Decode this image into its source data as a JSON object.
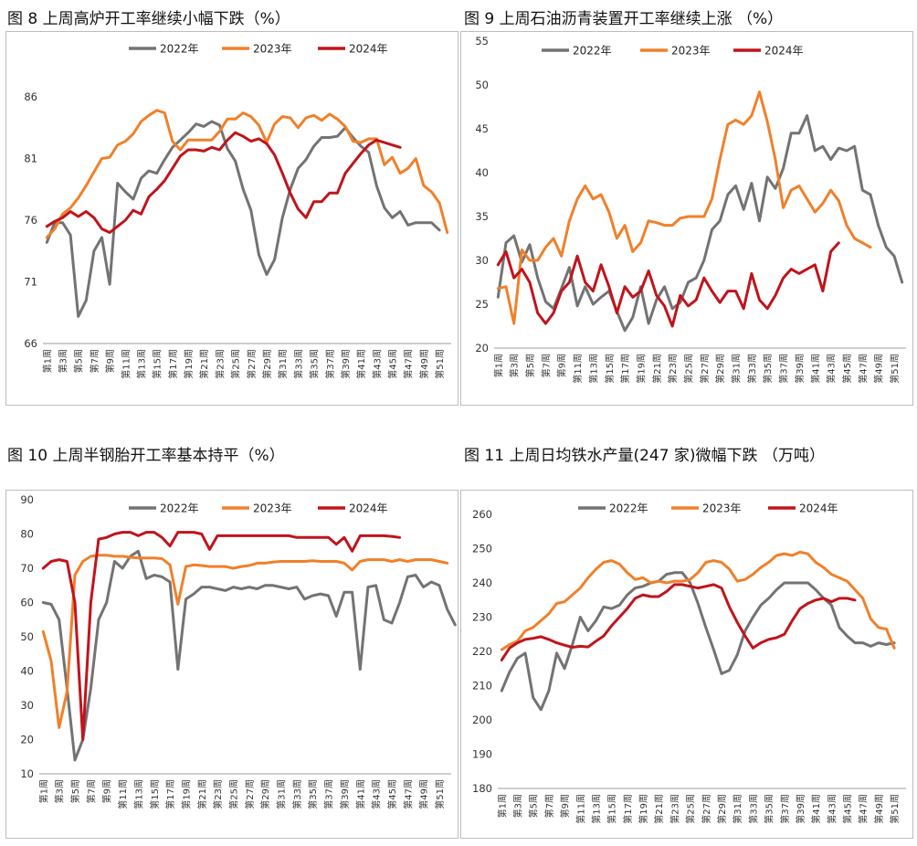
{
  "chart_data": [
    {
      "type": "line",
      "title": "图 8 上周高炉开工率继续小幅下跌（%）",
      "ylim": [
        66,
        88
      ],
      "yticks": [
        66,
        71,
        76,
        81,
        86
      ],
      "x_labels": [
        "第1周",
        "第3周",
        "第5周",
        "第7周",
        "第9周",
        "第11周",
        "第13周",
        "第15周",
        "第17周",
        "第19周",
        "第21周",
        "第23周",
        "第25周",
        "第27周",
        "第29周",
        "第31周",
        "第33周",
        "第35周",
        "第37周",
        "第39周",
        "第41周",
        "第43周",
        "第45周",
        "第47周",
        "第49周",
        "第51周"
      ],
      "series": [
        {
          "name": "2022年",
          "color": "#737373",
          "values": [
            74.2,
            75.8,
            75.8,
            74.8,
            68.2,
            69.5,
            73.5,
            74.6,
            70.8,
            79.0,
            78.3,
            77.7,
            79.4,
            80.0,
            79.8,
            80.9,
            81.9,
            82.5,
            83.1,
            83.8,
            83.6,
            84.0,
            83.7,
            81.8,
            80.8,
            78.5,
            76.8,
            73.2,
            71.6,
            72.8,
            76.2,
            78.5,
            80.2,
            80.9,
            82.0,
            82.7,
            82.7,
            82.8,
            83.5,
            82.7,
            82.0,
            81.5,
            78.8,
            77.0,
            76.2,
            76.7,
            75.6,
            75.8,
            75.8,
            75.8,
            75.2
          ]
        },
        {
          "name": "2023年",
          "color": "#f0802a",
          "values": [
            74.6,
            75.3,
            76.5,
            77.0,
            77.8,
            78.8,
            79.9,
            81.0,
            81.1,
            82.1,
            82.4,
            83.0,
            84.0,
            84.5,
            84.9,
            84.7,
            82.4,
            81.7,
            82.5,
            82.5,
            82.5,
            82.5,
            83.2,
            84.2,
            84.2,
            84.7,
            84.4,
            83.7,
            82.3,
            83.8,
            84.4,
            84.3,
            83.5,
            84.3,
            84.5,
            84.1,
            84.6,
            84.2,
            83.6,
            82.4,
            82.3,
            82.6,
            82.6,
            80.5,
            81.1,
            79.8,
            80.2,
            81.0,
            78.8,
            78.3,
            77.4,
            75.0
          ]
        },
        {
          "name": "2024年",
          "color": "#c0141c",
          "values": [
            75.5,
            75.9,
            76.2,
            76.7,
            76.3,
            76.7,
            76.2,
            75.3,
            75.0,
            75.5,
            76.0,
            76.8,
            76.5,
            77.9,
            78.5,
            79.2,
            80.2,
            81.2,
            81.7,
            81.7,
            81.6,
            81.9,
            81.7,
            82.5,
            83.1,
            82.8,
            82.4,
            82.6,
            82.2,
            81.3,
            79.8,
            78.2,
            76.9,
            76.2,
            77.5,
            77.5,
            78.2,
            78.2,
            79.8,
            80.6,
            81.4,
            82.1,
            82.5,
            82.3,
            82.1,
            81.9
          ]
        }
      ]
    },
    {
      "type": "line",
      "title": "图 9 上周石油沥青装置开工率继续上涨 （%）",
      "ylim": [
        20,
        55
      ],
      "yticks": [
        20,
        25,
        30,
        35,
        40,
        45,
        50,
        55
      ],
      "x_labels": [
        "第1周",
        "第3周",
        "第5周",
        "第7周",
        "第9周",
        "第11周",
        "第13周",
        "第15周",
        "第17周",
        "第19周",
        "第21周",
        "第23周",
        "第25周",
        "第27周",
        "第29周",
        "第31周",
        "第33周",
        "第35周",
        "第37周",
        "第39周",
        "第41周",
        "第43周",
        "第45周",
        "第47周",
        "第49周",
        "第51周"
      ],
      "series": [
        {
          "name": "2022年",
          "color": "#737373",
          "values": [
            25.8,
            32.0,
            32.8,
            29.8,
            31.8,
            28.0,
            25.3,
            24.5,
            26.8,
            29.2,
            24.8,
            27.0,
            25.0,
            25.8,
            26.5,
            24.2,
            22.0,
            23.5,
            27.0,
            22.8,
            25.5,
            27.0,
            24.5,
            25.2,
            27.5,
            28.0,
            30.0,
            33.5,
            34.5,
            37.5,
            38.5,
            35.8,
            38.8,
            34.5,
            39.5,
            38.2,
            40.5,
            44.5,
            44.5,
            46.5,
            42.5,
            43.0,
            41.5,
            42.8,
            42.5,
            43.0,
            38.0,
            37.5,
            34.0,
            31.5,
            30.5,
            27.5
          ]
        },
        {
          "name": "2023年",
          "color": "#f0802a",
          "values": [
            26.8,
            27.0,
            22.8,
            31.2,
            30.0,
            30.0,
            31.5,
            32.5,
            30.5,
            34.5,
            37.0,
            38.5,
            37.0,
            37.5,
            35.5,
            32.5,
            34.0,
            31.0,
            32.0,
            34.5,
            34.3,
            34.0,
            34.0,
            34.8,
            35.0,
            35.0,
            35.0,
            37.0,
            41.5,
            45.5,
            46.0,
            45.5,
            46.5,
            49.2,
            45.8,
            41.5,
            36.0,
            38.0,
            38.5,
            37.0,
            35.5,
            36.5,
            38.0,
            36.8,
            34.0,
            32.5,
            32.0,
            31.5
          ]
        },
        {
          "name": "2024年",
          "color": "#c0141c",
          "values": [
            29.5,
            31.0,
            28.0,
            29.0,
            27.5,
            24.0,
            22.8,
            24.0,
            26.5,
            27.5,
            30.5,
            27.5,
            26.5,
            29.5,
            27.0,
            24.0,
            27.0,
            25.8,
            26.5,
            28.8,
            26.0,
            24.8,
            22.5,
            26.0,
            24.8,
            25.5,
            28.0,
            26.5,
            25.2,
            26.5,
            26.5,
            24.5,
            28.5,
            25.5,
            24.5,
            26.0,
            28.0,
            29.0,
            28.5,
            29.0,
            29.5,
            26.5,
            31.0,
            32.0
          ]
        }
      ]
    },
    {
      "type": "line",
      "title": "图 10 上周半钢胎开工率基本持平（%）",
      "ylim": [
        10,
        90
      ],
      "yticks": [
        10,
        20,
        30,
        40,
        50,
        60,
        70,
        80,
        90
      ],
      "x_labels": [
        "第1周",
        "第3周",
        "第5周",
        "第7周",
        "第9周",
        "第11周",
        "第13周",
        "第15周",
        "第17周",
        "第19周",
        "第21周",
        "第23周",
        "第25周",
        "第27周",
        "第29周",
        "第31周",
        "第33周",
        "第35周",
        "第37周",
        "第39周",
        "第41周",
        "第43周",
        "第45周",
        "第47周",
        "第49周",
        "第51周"
      ],
      "series": [
        {
          "name": "2022年",
          "color": "#737373",
          "values": [
            60.0,
            59.5,
            55.0,
            35.0,
            14.0,
            20.0,
            35.0,
            55.0,
            60.0,
            72.0,
            70.0,
            73.5,
            75.0,
            67.0,
            68.0,
            67.5,
            66.0,
            40.5,
            61.0,
            62.5,
            64.5,
            64.5,
            64.0,
            63.5,
            64.5,
            64.0,
            64.5,
            64.0,
            65.0,
            65.0,
            64.5,
            64.0,
            64.5,
            61.0,
            62.0,
            62.5,
            62.0,
            56.0,
            63.0,
            63.0,
            40.5,
            64.5,
            65.0,
            55.0,
            54.0,
            60.0,
            67.5,
            68.0,
            64.5,
            66.0,
            65.0,
            58.0,
            53.5
          ]
        },
        {
          "name": "2023年",
          "color": "#f0802a",
          "values": [
            51.5,
            43.0,
            23.5,
            34.0,
            68.0,
            72.0,
            73.5,
            73.8,
            73.8,
            73.5,
            73.5,
            73.2,
            73.0,
            73.0,
            73.0,
            72.8,
            71.0,
            59.5,
            70.5,
            71.0,
            70.8,
            70.5,
            70.5,
            70.5,
            70.0,
            70.5,
            70.8,
            71.5,
            71.5,
            71.8,
            72.0,
            72.0,
            72.0,
            72.0,
            72.2,
            72.0,
            72.0,
            72.0,
            71.5,
            69.5,
            72.0,
            72.5,
            72.5,
            72.5,
            72.0,
            72.5,
            72.0,
            72.5,
            72.5,
            72.5,
            72.0,
            71.5
          ]
        },
        {
          "name": "2024年",
          "color": "#c0141c",
          "values": [
            70.0,
            72.0,
            72.5,
            72.0,
            60.0,
            20.0,
            60.0,
            78.5,
            79.0,
            80.0,
            80.5,
            80.5,
            79.5,
            80.5,
            80.5,
            79.0,
            76.5,
            80.5,
            80.5,
            80.5,
            80.0,
            75.5,
            79.5,
            79.5,
            79.5,
            79.5,
            79.5,
            79.5,
            79.5,
            79.5,
            79.5,
            79.5,
            79.0,
            79.0,
            79.0,
            79.0,
            79.0,
            77.0,
            79.0,
            75.0,
            79.5,
            79.5,
            79.5,
            79.5,
            79.3,
            79.0
          ]
        }
      ]
    },
    {
      "type": "line",
      "title": "图 11 上周日均铁水产量(247 家)微幅下跌 （万吨）",
      "ylim": [
        180,
        260
      ],
      "yticks": [
        180,
        190,
        200,
        210,
        220,
        230,
        240,
        250,
        260
      ],
      "x_labels": [
        "第1周",
        "第3周",
        "第5周",
        "第7周",
        "第9周",
        "第11周",
        "第13周",
        "第15周",
        "第17周",
        "第19周",
        "第21周",
        "第23周",
        "第25周",
        "第27周",
        "第29周",
        "第31周",
        "第33周",
        "第35周",
        "第37周",
        "第39周",
        "第41周",
        "第43周",
        "第45周",
        "第47周",
        "第49周",
        "第51周"
      ],
      "series": [
        {
          "name": "2022年",
          "color": "#737373",
          "values": [
            208.5,
            214.0,
            218.0,
            219.5,
            206.5,
            203.0,
            208.5,
            219.5,
            215.0,
            222.0,
            230.0,
            226.0,
            229.0,
            233.0,
            232.5,
            233.5,
            236.5,
            238.5,
            239.0,
            240.0,
            240.5,
            242.5,
            243.0,
            243.0,
            240.0,
            234.0,
            227.0,
            220.5,
            213.5,
            214.5,
            219.0,
            226.0,
            230.0,
            233.5,
            235.5,
            238.0,
            240.0,
            240.0,
            240.0,
            240.0,
            238.0,
            235.5,
            233.5,
            227.0,
            224.5,
            222.5,
            222.5,
            221.5,
            222.5,
            222.0,
            222.5
          ]
        },
        {
          "name": "2023年",
          "color": "#f0802a",
          "values": [
            220.5,
            222.0,
            223.0,
            226.0,
            227.0,
            229.0,
            231.0,
            234.0,
            234.5,
            236.5,
            238.5,
            241.5,
            244.0,
            246.0,
            246.5,
            245.5,
            243.0,
            241.0,
            241.5,
            240.0,
            240.5,
            240.0,
            240.5,
            240.5,
            241.0,
            243.0,
            246.0,
            246.5,
            246.0,
            244.0,
            240.5,
            241.0,
            242.5,
            244.5,
            246.0,
            248.0,
            248.5,
            248.0,
            249.0,
            248.5,
            246.0,
            244.5,
            242.5,
            241.5,
            240.5,
            238.0,
            235.5,
            229.5,
            227.0,
            226.5,
            221.0
          ]
        },
        {
          "name": "2024年",
          "color": "#c0141c",
          "values": [
            217.5,
            221.0,
            222.5,
            223.5,
            223.8,
            224.3,
            223.5,
            222.5,
            221.8,
            221.2,
            221.5,
            221.3,
            223.0,
            224.5,
            227.5,
            230.0,
            232.5,
            235.5,
            236.5,
            236.0,
            236.0,
            237.5,
            239.5,
            239.5,
            239.0,
            238.5,
            239.0,
            239.5,
            238.5,
            233.0,
            228.5,
            224.5,
            221.0,
            222.5,
            223.5,
            224.0,
            225.0,
            229.0,
            232.5,
            234.0,
            235.0,
            235.5,
            234.5,
            235.5,
            235.5,
            235.0
          ]
        }
      ]
    }
  ]
}
